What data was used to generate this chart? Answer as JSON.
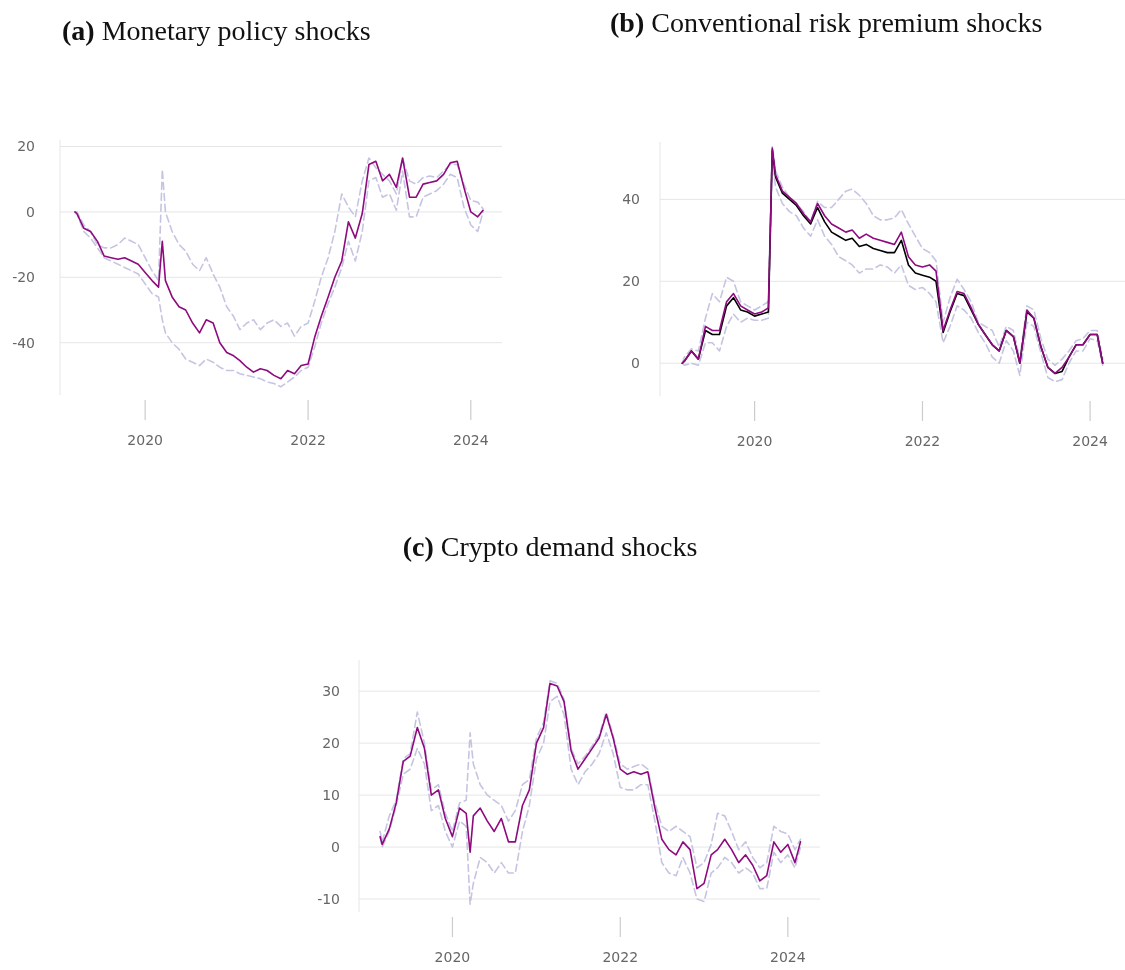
{
  "chart_data": [
    {
      "type": "line",
      "title": "(a) Monetary policy shocks",
      "grid": "y",
      "xlim": [
        "2018-12-15",
        "2024-05-20"
      ],
      "xticks": [
        "2020",
        "2022",
        "2024"
      ],
      "ylim": [
        -56,
        22
      ],
      "yticks": [
        -40,
        -20,
        0,
        20
      ],
      "x": [
        "2019-02-20",
        "2019-03-01",
        "2019-04-01",
        "2019-05-01",
        "2019-06-01",
        "2019-07-01",
        "2019-08-01",
        "2019-09-01",
        "2019-10-01",
        "2019-11-01",
        "2019-12-01",
        "2020-01-01",
        "2020-02-01",
        "2020-03-01",
        "2020-03-18",
        "2020-04-01",
        "2020-05-01",
        "2020-06-01",
        "2020-07-01",
        "2020-08-01",
        "2020-09-01",
        "2020-10-01",
        "2020-11-01",
        "2020-12-01",
        "2021-01-01",
        "2021-02-01",
        "2021-03-01",
        "2021-04-01",
        "2021-05-01",
        "2021-06-01",
        "2021-07-01",
        "2021-08-01",
        "2021-09-01",
        "2021-10-01",
        "2021-11-01",
        "2021-12-01",
        "2022-01-01",
        "2022-02-01",
        "2022-03-01",
        "2022-04-01",
        "2022-05-01",
        "2022-06-01",
        "2022-07-01",
        "2022-08-01",
        "2022-09-01",
        "2022-10-01",
        "2022-11-01",
        "2022-12-01",
        "2023-01-01",
        "2023-02-01",
        "2023-03-01",
        "2023-04-01",
        "2023-05-01",
        "2023-06-01",
        "2023-07-01",
        "2023-08-01",
        "2023-09-01",
        "2023-10-01",
        "2023-11-01",
        "2023-12-01",
        "2024-01-01",
        "2024-02-01",
        "2024-02-25"
      ],
      "series": [
        {
          "color": "#c5c5e2",
          "line_style": "dashed",
          "values": [
            0,
            0,
            -4,
            -6,
            -10,
            -11,
            -11,
            -10,
            -8,
            -9,
            -10,
            -14,
            -18,
            -21,
            13,
            0,
            -6,
            -10,
            -12,
            -16,
            -18,
            -14,
            -19,
            -23,
            -29,
            -32,
            -36,
            -34,
            -33,
            -36,
            -34,
            -33,
            -35,
            -34,
            -38,
            -35,
            -34,
            -27,
            -20,
            -14,
            -6,
            5.5,
            1.5,
            -1.5,
            9.5,
            16.5,
            13.5,
            11.5,
            9.5,
            5.5,
            16.5,
            9.5,
            8.5,
            10.5,
            11,
            10.5,
            12.5,
            14.5,
            14.5,
            8.5,
            3.5,
            3,
            1
          ]
        },
        {
          "color": "#c5c5e2",
          "line_style": "dashed",
          "values": [
            0,
            -0.5,
            -6,
            -8,
            -11,
            -14,
            -15,
            -16,
            -17,
            -18,
            -19,
            -22,
            -25,
            -26,
            -33,
            -37,
            -40,
            -42,
            -45,
            -46,
            -47,
            -45,
            -46,
            -47.5,
            -48.5,
            -48.5,
            -49.5,
            -50,
            -50.5,
            -51,
            -52,
            -52.5,
            -53.5,
            -52,
            -50.5,
            -48.5,
            -47.5,
            -41,
            -34,
            -28,
            -23,
            -17,
            -9,
            -15,
            -6,
            9.5,
            10.5,
            4.5,
            5.5,
            0.5,
            12.5,
            -1.5,
            -1.5,
            4.5,
            5.5,
            6.5,
            8.5,
            11.5,
            10.5,
            1.5,
            -4,
            -6,
            0
          ]
        },
        {
          "color": "#8e0a7e",
          "line_style": "solid",
          "values": [
            0,
            -0.5,
            -5,
            -6,
            -9,
            -13.5,
            -14,
            -14.5,
            -14,
            -15,
            -16,
            -18.5,
            -21,
            -23,
            -9,
            -21,
            -26,
            -29,
            -30,
            -34,
            -37,
            -33,
            -34,
            -40,
            -43,
            -44,
            -45.5,
            -47.5,
            -49,
            -48,
            -48.5,
            -50,
            -51,
            -48.5,
            -49.5,
            -47,
            -46.5,
            -38,
            -32,
            -26,
            -20,
            -15,
            -3,
            -8,
            -0.5,
            14.5,
            15.5,
            9.5,
            11.5,
            7.5,
            16.5,
            4.5,
            4.5,
            8.5,
            9,
            9.5,
            11.5,
            15,
            15.5,
            7.5,
            0,
            -1.5,
            0.5
          ]
        }
      ]
    },
    {
      "type": "line",
      "title": "(b) Conventional risk premium shocks",
      "grid": "y",
      "xlim": [
        "2018-11-15",
        "2024-06-01"
      ],
      "xticks": [
        "2020",
        "2022",
        "2024"
      ],
      "ylim": [
        -8,
        54
      ],
      "yticks": [
        0,
        20,
        40
      ],
      "x": [
        "2019-02-20",
        "2019-03-01",
        "2019-04-01",
        "2019-05-01",
        "2019-06-01",
        "2019-07-01",
        "2019-08-01",
        "2019-09-01",
        "2019-10-01",
        "2019-11-01",
        "2019-12-01",
        "2020-01-01",
        "2020-02-01",
        "2020-03-01",
        "2020-03-18",
        "2020-04-01",
        "2020-05-01",
        "2020-06-01",
        "2020-07-01",
        "2020-08-01",
        "2020-09-01",
        "2020-10-01",
        "2020-11-01",
        "2020-12-01",
        "2021-01-01",
        "2021-02-01",
        "2021-03-01",
        "2021-04-01",
        "2021-05-01",
        "2021-06-01",
        "2021-07-01",
        "2021-08-01",
        "2021-09-01",
        "2021-10-01",
        "2021-11-01",
        "2021-12-01",
        "2022-01-01",
        "2022-02-01",
        "2022-03-01",
        "2022-04-01",
        "2022-05-01",
        "2022-06-01",
        "2022-07-01",
        "2022-08-01",
        "2022-09-01",
        "2022-10-01",
        "2022-11-01",
        "2022-12-01",
        "2023-01-01",
        "2023-02-01",
        "2023-03-01",
        "2023-04-01",
        "2023-05-01",
        "2023-06-01",
        "2023-07-01",
        "2023-08-01",
        "2023-09-01",
        "2023-10-01",
        "2023-11-01",
        "2023-12-01",
        "2024-01-01",
        "2024-02-01",
        "2024-02-25"
      ],
      "series": [
        {
          "color": "#c5c5e2",
          "line_style": "dashed",
          "values": [
            0,
            1.5,
            3.5,
            3,
            11,
            17,
            15,
            21,
            20,
            15,
            14,
            13,
            14,
            15,
            53,
            47,
            43,
            40.5,
            39,
            37,
            34.5,
            39.5,
            38,
            38,
            40,
            42,
            42.5,
            41,
            39,
            36,
            35,
            35,
            35.5,
            37.5,
            34,
            31,
            28,
            27,
            25,
            10,
            16,
            20.5,
            18,
            15,
            10,
            9,
            8,
            4,
            9,
            8,
            1,
            14,
            13,
            6,
            1,
            -0.5,
            1,
            3,
            5.5,
            6,
            8,
            8,
            1
          ]
        },
        {
          "color": "#c5c5e2",
          "line_style": "dashed",
          "values": [
            0,
            -0.5,
            0,
            -0.5,
            5,
            5,
            3,
            9,
            12,
            10,
            11,
            10.5,
            10.5,
            11,
            50,
            43,
            39,
            37,
            36,
            33,
            31,
            35,
            31,
            29,
            26,
            25,
            24,
            22,
            23,
            23,
            24,
            23.5,
            22,
            24,
            19,
            18,
            18.5,
            17,
            15,
            5,
            9,
            14,
            13,
            11,
            7.5,
            5,
            1.5,
            0,
            5.5,
            3,
            -3,
            10,
            9,
            2.5,
            -3.5,
            -4.5,
            -4,
            0,
            3,
            3,
            6,
            5.5,
            -0.5
          ]
        },
        {
          "color": "#000000",
          "line_style": "solid",
          "values": [
            0,
            0.5,
            3,
            1,
            8,
            7,
            7,
            14,
            16,
            13,
            12.5,
            11.5,
            12,
            12.5,
            52,
            45.5,
            41.5,
            40,
            38.5,
            36,
            34,
            38,
            34.5,
            32,
            31,
            30,
            30.5,
            28.5,
            29,
            28,
            27.5,
            27,
            27,
            30,
            24,
            22,
            21.5,
            21,
            20,
            7.5,
            12.5,
            17,
            16.5,
            13,
            9.5,
            7,
            4.5,
            3,
            8,
            6.5,
            0,
            12.5,
            11,
            4,
            -1,
            -2.5,
            -2,
            1.5,
            4.5,
            4.5,
            7,
            7,
            0
          ]
        },
        {
          "color": "#8e0a7e",
          "line_style": "solid",
          "values": [
            0,
            0.5,
            3,
            1,
            9,
            8,
            8,
            15,
            17,
            14,
            13,
            12,
            12.5,
            13.5,
            52.5,
            46,
            42,
            40.5,
            39,
            36.5,
            34.5,
            39,
            36,
            34,
            33,
            32,
            32.5,
            30.5,
            31.5,
            30.5,
            30,
            29.5,
            29,
            32,
            26,
            24,
            23.5,
            24,
            22.5,
            8,
            13,
            17.5,
            17,
            13.5,
            9.5,
            7,
            4.5,
            3,
            8,
            6.5,
            0,
            13,
            11,
            4,
            -1,
            -2.5,
            -1,
            1.5,
            4.5,
            4.5,
            7,
            7,
            0
          ]
        }
      ]
    },
    {
      "type": "line",
      "title": "(c) Crypto demand shocks",
      "grid": "y",
      "xlim": [
        "2018-11-20",
        "2024-05-20"
      ],
      "xticks": [
        "2020",
        "2022",
        "2024"
      ],
      "ylim": [
        -12.5,
        36
      ],
      "yticks": [
        -10,
        0,
        10,
        20,
        30
      ],
      "x": [
        "2019-02-20",
        "2019-03-01",
        "2019-04-01",
        "2019-05-01",
        "2019-06-01",
        "2019-07-01",
        "2019-08-01",
        "2019-09-01",
        "2019-10-01",
        "2019-11-01",
        "2019-12-01",
        "2020-01-01",
        "2020-02-01",
        "2020-03-01",
        "2020-03-18",
        "2020-04-01",
        "2020-05-01",
        "2020-06-01",
        "2020-07-01",
        "2020-08-01",
        "2020-09-01",
        "2020-10-01",
        "2020-11-01",
        "2020-12-01",
        "2021-01-01",
        "2021-02-01",
        "2021-03-01",
        "2021-04-01",
        "2021-05-01",
        "2021-06-01",
        "2021-07-01",
        "2021-08-01",
        "2021-09-01",
        "2021-10-01",
        "2021-11-01",
        "2021-12-01",
        "2022-01-01",
        "2022-02-01",
        "2022-03-01",
        "2022-04-01",
        "2022-05-01",
        "2022-06-01",
        "2022-07-01",
        "2022-08-01",
        "2022-09-01",
        "2022-10-01",
        "2022-11-01",
        "2022-12-01",
        "2023-01-01",
        "2023-02-01",
        "2023-03-01",
        "2023-04-01",
        "2023-05-01",
        "2023-06-01",
        "2023-07-01",
        "2023-08-01",
        "2023-09-01",
        "2023-10-01",
        "2023-11-01",
        "2023-12-01",
        "2024-01-01",
        "2024-02-01",
        "2024-02-25"
      ],
      "series": [
        {
          "color": "#c5c5e2",
          "line_style": "dashed",
          "values": [
            3,
            1,
            6,
            9,
            17,
            18,
            26,
            20,
            11,
            12,
            6.5,
            3,
            8.5,
            9,
            22,
            16,
            12,
            10,
            9,
            8,
            5,
            7,
            12,
            13,
            21,
            24,
            32,
            31.5,
            28.5,
            19,
            16,
            17.5,
            19.5,
            21.5,
            26,
            21.5,
            16,
            15,
            15.5,
            16,
            15,
            8.5,
            4,
            3,
            4,
            3,
            2,
            -4,
            -3,
            0.5,
            6.5,
            6,
            3,
            -0.5,
            1,
            -2,
            -4,
            -3,
            4,
            3,
            2.5,
            -0.5,
            1.5
          ]
        },
        {
          "color": "#c5c5e2",
          "line_style": "dashed",
          "values": [
            2,
            0,
            3,
            8,
            14,
            15,
            19,
            16,
            7,
            8,
            3,
            0,
            5,
            4,
            -11,
            -7,
            -2,
            -3,
            -5,
            -3,
            -5,
            -5,
            3,
            8,
            17,
            20,
            28,
            29,
            25.5,
            15,
            12,
            14.5,
            16,
            18,
            22,
            18,
            11.5,
            11,
            11,
            12,
            12,
            5,
            -3,
            -5,
            -5.5,
            -2,
            -5,
            -10,
            -10.5,
            -5,
            -4,
            -2,
            -3,
            -5,
            -4,
            -5,
            -8,
            -8,
            -1,
            -3,
            -1.5,
            -4,
            0
          ]
        },
        {
          "color": "#8e0a7e",
          "line_style": "solid",
          "values": [
            2,
            0.5,
            3.5,
            8.5,
            16.5,
            17.5,
            23,
            19,
            10,
            11,
            5.5,
            2,
            7.5,
            6.5,
            -1,
            6,
            7.5,
            5,
            3,
            5.5,
            1,
            1,
            8,
            11,
            20,
            23,
            31.5,
            31,
            28,
            18.5,
            15,
            17,
            19,
            21,
            25.5,
            21,
            15,
            14,
            14.5,
            14,
            14.5,
            7.5,
            1.5,
            -0.5,
            -1.5,
            1,
            -0.5,
            -8,
            -7,
            -1.5,
            -0.5,
            1.5,
            -0.5,
            -3,
            -1.5,
            -3.5,
            -6.5,
            -5.5,
            1,
            -1,
            0.5,
            -3,
            1
          ]
        }
      ]
    }
  ]
}
